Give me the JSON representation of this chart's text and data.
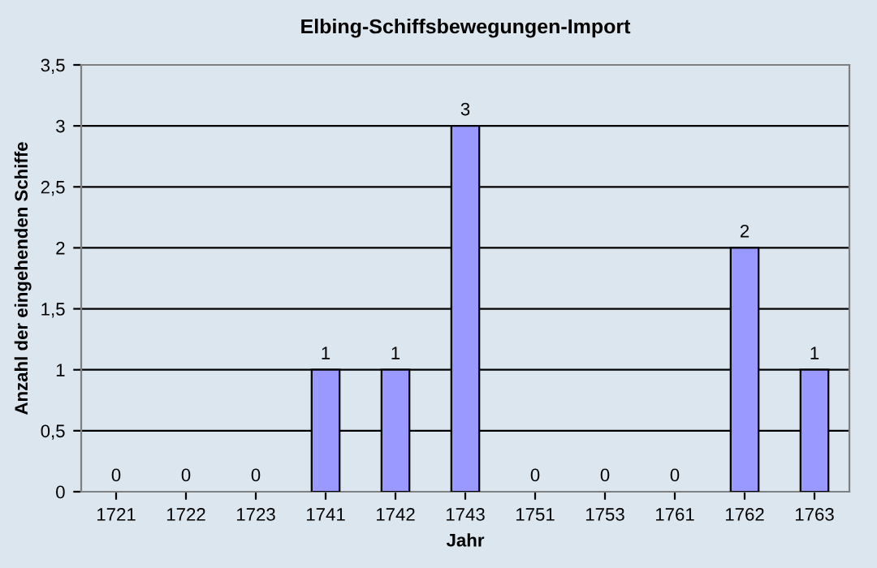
{
  "chart_data": {
    "type": "bar",
    "title": "Elbing-Schiffsbewegungen-Import",
    "xlabel": "Jahr",
    "ylabel": "Anzahl der eingehenden Schiffe",
    "categories": [
      "1721",
      "1722",
      "1723",
      "1741",
      "1742",
      "1743",
      "1751",
      "1753",
      "1761",
      "1762",
      "1763"
    ],
    "values": [
      0,
      0,
      0,
      1,
      1,
      3,
      0,
      0,
      0,
      2,
      1
    ],
    "color": "#9999ff",
    "ylim": [
      0,
      3.5
    ],
    "yticks": [
      0,
      {
        "value": 0.5,
        "label": "0,5"
      },
      1,
      {
        "value": 1.5,
        "label": "1,5"
      },
      2,
      {
        "value": 2.5,
        "label": "2,5"
      },
      3,
      {
        "value": 3.5,
        "label": "3,5"
      }
    ],
    "grid": "y",
    "data_labels": true,
    "legend": false
  }
}
